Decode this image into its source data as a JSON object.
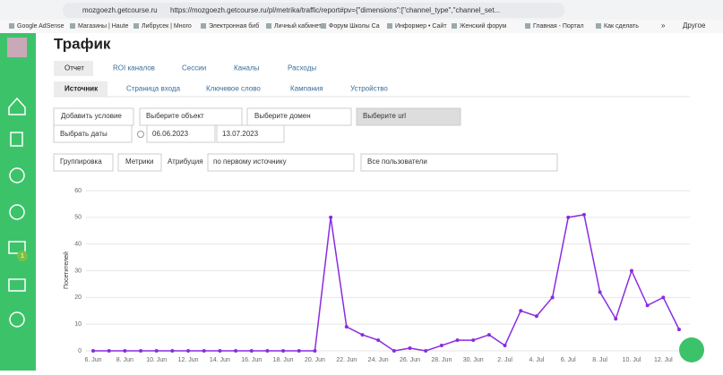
{
  "browser": {
    "host": "mozgoezh.getcourse.ru",
    "url": "https://mozgoezh.getcourse.ru/pl/metrika/traffic/report#pv={\"dimensions\":[\"channel_type\",\"channel_set...",
    "bookmarks": [
      "Google AdSense",
      "Магазины | Haute",
      "Либрусек | Много",
      "Электронная биб",
      "Личный кабинет",
      "Форум Школы Са",
      "Информер • Сайт",
      "Женский форум",
      "Главная - Портал",
      "Как сделать"
    ],
    "overflow": "»",
    "other": "Другое"
  },
  "sidebar": {
    "badge": "1"
  },
  "page": {
    "title": "Трафик",
    "tabs": [
      "Отчет",
      "ROI каналов",
      "Сессии",
      "Каналы",
      "Расходы"
    ],
    "subtabs": [
      "Источник",
      "Страница входа",
      "Ключевое слово",
      "Кампания",
      "Устройство"
    ],
    "filters": {
      "add_condition": "Добавить условие",
      "object": "Выберите объект",
      "domain": "Выберите домен",
      "url": "Выберите url",
      "dates": "Выбрать даты",
      "date_from": "06.06.2023",
      "date_to": "13.07.2023"
    },
    "controls": {
      "grouping": "Группировка",
      "metrics": "Метрики",
      "attribution": "Атрибуция",
      "attribution_value": "по первому источнику",
      "users": "Все пользователи"
    }
  },
  "chart_data": {
    "type": "line",
    "y_label": "Посетителей",
    "categories": [
      "6. Jun",
      null,
      "8. Jun",
      null,
      "10. Jun",
      null,
      "12. Jun",
      null,
      "14. Jun",
      null,
      "16. Jun",
      null,
      "18. Jun",
      null,
      "20. Jun",
      null,
      "22. Jun",
      null,
      "24. Jun",
      null,
      "26. Jun",
      null,
      "28. Jun",
      null,
      "30. Jun",
      null,
      "2. Jul",
      null,
      "4. Jul",
      null,
      "6. Jul",
      null,
      "8. Jul",
      null,
      "10. Jul",
      null,
      "12. Jul",
      null
    ],
    "values": [
      0,
      0,
      0,
      0,
      0,
      0,
      0,
      0,
      0,
      0,
      0,
      0,
      0,
      0,
      0,
      50,
      9,
      6,
      4,
      0,
      1,
      0,
      2,
      4,
      4,
      6,
      2,
      15,
      13,
      20,
      50,
      51,
      22,
      12,
      30,
      17,
      20,
      8
    ],
    "color": "#8a2be2",
    "ylim": [
      0,
      60
    ],
    "yticks": [
      0,
      10,
      20,
      30,
      40,
      50,
      60
    ],
    "grid": true
  }
}
